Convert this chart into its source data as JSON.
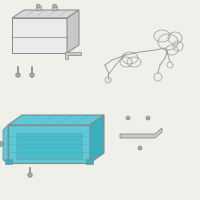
{
  "bg_color": "#f0f0eb",
  "part_color": "#5cc8d8",
  "part_dark": "#3aafbe",
  "line_color": "#888888",
  "line_thin": "#aaaaaa",
  "bolt_color": "#b0b0b0",
  "battery_face": "#ebebeb",
  "battery_top": "#d8d8d8",
  "battery_side": "#c8c8c8"
}
